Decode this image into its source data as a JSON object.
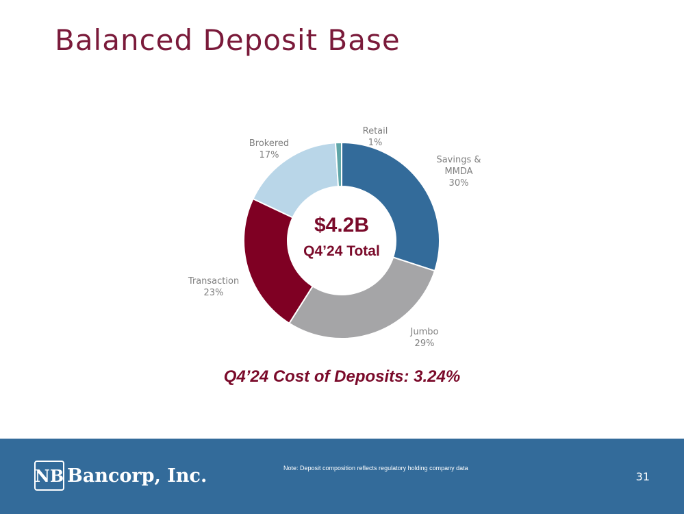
{
  "slide": {
    "title": "Balanced Deposit Base",
    "cost_of_deposits": "Q4’24 Cost of Deposits: 3.24%"
  },
  "chart_data": {
    "type": "pie",
    "donut": true,
    "center_total": "$4.2B",
    "center_subtitle": "Q4’24 Total",
    "categories": [
      "Savings & MMDA",
      "Jumbo",
      "Transaction",
      "Brokered",
      "Retail"
    ],
    "label_lines": [
      [
        "Savings &",
        "MMDA",
        "30%"
      ],
      [
        "Jumbo",
        "29%"
      ],
      [
        "Transaction",
        "23%"
      ],
      [
        "Brokered",
        "17%"
      ],
      [
        "Retail",
        "1%"
      ]
    ],
    "values": [
      30,
      29,
      23,
      17,
      1
    ],
    "value_labels": [
      "30%",
      "29%",
      "23%",
      "17%",
      "1%"
    ],
    "colors": [
      "#336b9a",
      "#a5a5a7",
      "#7f0023",
      "#b9d6e8",
      "#5fa6a8"
    ]
  },
  "footer": {
    "company": "Bancorp, Inc.",
    "logo_mark": "NB",
    "note": "Note: Deposit composition reflects regulatory holding company data",
    "page_number": "31"
  }
}
